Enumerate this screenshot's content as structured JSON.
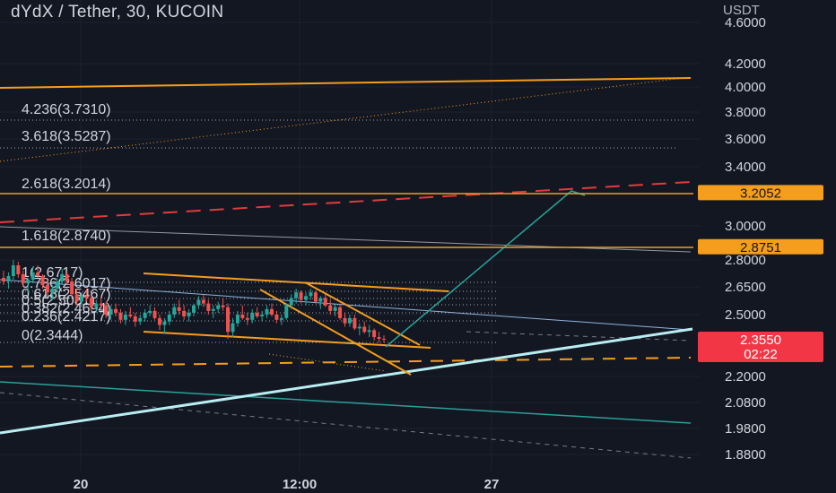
{
  "header": {
    "title": "dYdX / Tether, 30, KUCOIN",
    "currency": "USDT"
  },
  "chart_data": {
    "type": "candlestick",
    "symbol": "dYdX / Tether",
    "interval": "30",
    "exchange": "KUCOIN",
    "y_axis": {
      "unit": "USDT",
      "ticks": [
        "4.6000",
        "4.2000",
        "4.0000",
        "3.8000",
        "3.6000",
        "3.4000",
        "3.0000",
        "2.8000",
        "2.6500",
        "2.5000",
        "2.2000",
        "2.0800",
        "1.9800",
        "1.8800"
      ]
    },
    "x_axis": {
      "ticks": [
        "20",
        "12:00",
        "27"
      ]
    },
    "fib_levels": [
      {
        "label": "4.236(3.7310)",
        "ratio": 4.236,
        "price": 3.731
      },
      {
        "label": "3.618(3.5287)",
        "ratio": 3.618,
        "price": 3.5287
      },
      {
        "label": "2.618(3.2014)",
        "ratio": 2.618,
        "price": 3.2014
      },
      {
        "label": "1.618(2.8740)",
        "ratio": 1.618,
        "price": 2.874
      },
      {
        "label": "1(2.6717)",
        "ratio": 1,
        "price": 2.6717
      },
      {
        "label": "0.786(2.6017)",
        "ratio": 0.786,
        "price": 2.6017
      },
      {
        "label": "0.618(2.5467)",
        "ratio": 0.618,
        "price": 2.5467
      },
      {
        "label": "0.5(2.5081)",
        "ratio": 0.5,
        "price": 2.5081
      },
      {
        "label": "0.382(2.4694)",
        "ratio": 0.382,
        "price": 2.4694
      },
      {
        "label": "0.236(2.4217)",
        "ratio": 0.236,
        "price": 2.4217
      },
      {
        "label": "0(2.3444)",
        "ratio": 0,
        "price": 2.3444
      }
    ],
    "price_badges": [
      {
        "value": "3.2052",
        "price": 3.2052,
        "color": "#f59d1c"
      },
      {
        "value": "2.8751",
        "price": 2.8751,
        "color": "#f59d1c"
      },
      {
        "value": "2.3550",
        "price": 2.355,
        "countdown": "02:22",
        "color": "#f23645"
      }
    ],
    "current_price": 2.355,
    "candles": [
      [
        2.7,
        2.74,
        2.66,
        2.68
      ],
      [
        2.68,
        2.73,
        2.64,
        2.71
      ],
      [
        2.71,
        2.8,
        2.69,
        2.77
      ],
      [
        2.77,
        2.79,
        2.7,
        2.72
      ],
      [
        2.72,
        2.74,
        2.65,
        2.67
      ],
      [
        2.67,
        2.7,
        2.62,
        2.69
      ],
      [
        2.69,
        2.76,
        2.67,
        2.73
      ],
      [
        2.73,
        2.77,
        2.7,
        2.71
      ],
      [
        2.71,
        2.72,
        2.64,
        2.66
      ],
      [
        2.66,
        2.69,
        2.6,
        2.62
      ],
      [
        2.62,
        2.66,
        2.58,
        2.64
      ],
      [
        2.64,
        2.7,
        2.62,
        2.68
      ],
      [
        2.68,
        2.75,
        2.66,
        2.72
      ],
      [
        2.72,
        2.74,
        2.66,
        2.68
      ],
      [
        2.68,
        2.7,
        2.6,
        2.61
      ],
      [
        2.61,
        2.64,
        2.55,
        2.57
      ],
      [
        2.57,
        2.62,
        2.54,
        2.6
      ],
      [
        2.6,
        2.64,
        2.57,
        2.59
      ],
      [
        2.59,
        2.61,
        2.52,
        2.54
      ],
      [
        2.54,
        2.58,
        2.51,
        2.56
      ],
      [
        2.56,
        2.6,
        2.53,
        2.55
      ],
      [
        2.55,
        2.57,
        2.48,
        2.5
      ],
      [
        2.5,
        2.55,
        2.47,
        2.53
      ],
      [
        2.53,
        2.56,
        2.49,
        2.51
      ],
      [
        2.51,
        2.53,
        2.45,
        2.47
      ],
      [
        2.47,
        2.52,
        2.44,
        2.5
      ],
      [
        2.5,
        2.54,
        2.48,
        2.49
      ],
      [
        2.49,
        2.51,
        2.43,
        2.46
      ],
      [
        2.46,
        2.5,
        2.44,
        2.48
      ],
      [
        2.48,
        2.53,
        2.46,
        2.51
      ],
      [
        2.51,
        2.55,
        2.49,
        2.52
      ],
      [
        2.52,
        2.54,
        2.47,
        2.48
      ],
      [
        2.48,
        2.5,
        2.41,
        2.44
      ],
      [
        2.44,
        2.48,
        2.39,
        2.46
      ],
      [
        2.46,
        2.52,
        2.44,
        2.5
      ],
      [
        2.5,
        2.56,
        2.48,
        2.54
      ],
      [
        2.54,
        2.58,
        2.5,
        2.52
      ],
      [
        2.52,
        2.55,
        2.47,
        2.49
      ],
      [
        2.49,
        2.53,
        2.46,
        2.51
      ],
      [
        2.51,
        2.56,
        2.49,
        2.55
      ],
      [
        2.55,
        2.6,
        2.53,
        2.58
      ],
      [
        2.58,
        2.61,
        2.54,
        2.56
      ],
      [
        2.56,
        2.58,
        2.5,
        2.52
      ],
      [
        2.52,
        2.55,
        2.48,
        2.53
      ],
      [
        2.53,
        2.57,
        2.51,
        2.55
      ],
      [
        2.55,
        2.59,
        2.52,
        2.54
      ],
      [
        2.54,
        2.56,
        2.36,
        2.4
      ],
      [
        2.4,
        2.48,
        2.37,
        2.45
      ],
      [
        2.45,
        2.52,
        2.43,
        2.5
      ],
      [
        2.5,
        2.55,
        2.47,
        2.48
      ],
      [
        2.48,
        2.51,
        2.44,
        2.47
      ],
      [
        2.47,
        2.53,
        2.45,
        2.51
      ],
      [
        2.51,
        2.54,
        2.48,
        2.49
      ],
      [
        2.49,
        2.52,
        2.46,
        2.5
      ],
      [
        2.5,
        2.55,
        2.48,
        2.53
      ],
      [
        2.53,
        2.56,
        2.49,
        2.5
      ],
      [
        2.5,
        2.52,
        2.45,
        2.47
      ],
      [
        2.47,
        2.5,
        2.44,
        2.48
      ],
      [
        2.48,
        2.56,
        2.47,
        2.55
      ],
      [
        2.55,
        2.61,
        2.53,
        2.59
      ],
      [
        2.59,
        2.64,
        2.56,
        2.62
      ],
      [
        2.62,
        2.63,
        2.56,
        2.58
      ],
      [
        2.58,
        2.62,
        2.55,
        2.6
      ],
      [
        2.6,
        2.64,
        2.58,
        2.62
      ],
      [
        2.62,
        2.63,
        2.56,
        2.57
      ],
      [
        2.57,
        2.6,
        2.53,
        2.59
      ],
      [
        2.59,
        2.61,
        2.54,
        2.55
      ],
      [
        2.55,
        2.58,
        2.5,
        2.52
      ],
      [
        2.52,
        2.56,
        2.49,
        2.54
      ],
      [
        2.54,
        2.56,
        2.47,
        2.48
      ],
      [
        2.48,
        2.51,
        2.43,
        2.45
      ],
      [
        2.45,
        2.5,
        2.43,
        2.48
      ],
      [
        2.48,
        2.5,
        2.41,
        2.42
      ],
      [
        2.42,
        2.45,
        2.38,
        2.43
      ],
      [
        2.43,
        2.46,
        2.39,
        2.4
      ],
      [
        2.4,
        2.44,
        2.37,
        2.41
      ],
      [
        2.41,
        2.42,
        2.35,
        2.37
      ],
      [
        2.37,
        2.4,
        2.34,
        2.36
      ],
      [
        2.36,
        2.38,
        2.34,
        2.355
      ]
    ]
  }
}
